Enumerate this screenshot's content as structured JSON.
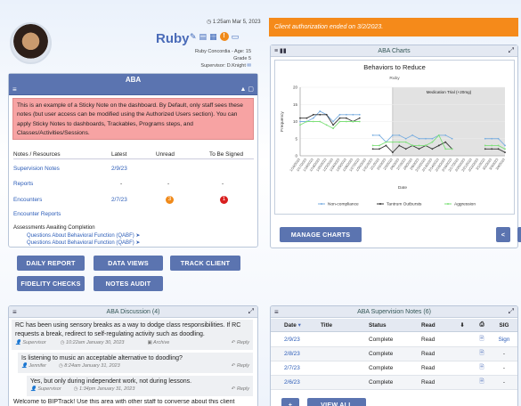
{
  "header": {
    "timestamp": "1:25am Mar 5, 2023",
    "name": "Ruby",
    "subtitle": "Ruby Concordia - Age: 15",
    "grade": "Grade 5",
    "supervisor": "Supervisor: D.Knight"
  },
  "aba": {
    "title": "ABA",
    "sticky": "This is an example of a Sticky Note on the dashboard. By Default, only staff sees these notes (but user access can be modified using the Authorized Users section). You can apply Sticky Notes to dashboards, Trackables, Programs steps, and Classes/Activities/Sessions.",
    "table_headers": [
      "Notes / Resources",
      "Latest",
      "Unread",
      "To Be Signed"
    ],
    "rows": [
      {
        "label": "Supervision Notes",
        "latest": "2/9/23",
        "unread": "",
        "sign": ""
      },
      {
        "label": "Reports",
        "latest": "-",
        "unread": "-",
        "sign": "-"
      },
      {
        "label": "Encounters",
        "latest": "2/7/23",
        "unread": "3",
        "sign": "1"
      },
      {
        "label": "Encounter Reports",
        "latest": "",
        "unread": "",
        "sign": ""
      }
    ],
    "assess_title": "Assessments Awaiting Completion",
    "assess": [
      "Questions About Behavioral Function (QABF)",
      "Questions About Behavioral Function (QABF)"
    ]
  },
  "buttons": {
    "daily": "DAILY REPORT",
    "views": "DATA VIEWS",
    "track": "TRACK CLIENT",
    "fidelity": "FIDELITY CHECKS",
    "notes": "NOTES AUDIT",
    "manage": "MANAGE CHARTS",
    "prev": "<",
    "next": ">",
    "add": "+",
    "viewall": "VIEW ALL"
  },
  "auth_banner": "Client authorization ended on 3/2/2023.",
  "charts": {
    "panel_title": "ABA Charts"
  },
  "chart_data": {
    "type": "line",
    "title": "Behaviors to Reduce",
    "subtitle": "Ruby",
    "xlabel": "Date",
    "ylabel": "Frequency",
    "ylim": [
      0,
      20
    ],
    "yticks": [
      0,
      5,
      10,
      15,
      20
    ],
    "phase_label": "Medication Trial (+20mg)",
    "phase_start": "2/3/2023",
    "x": [
      "1/16/2023",
      "1/17/2023",
      "1/18/2023",
      "1/19/2023",
      "1/20/2023",
      "1/23/2023",
      "1/24/2023",
      "1/25/2023",
      "1/26/2023",
      "1/27/2023",
      "1/30/2023",
      "1/31/2023",
      "2/1/2023",
      "2/2/2023",
      "2/3/2023",
      "2/6/2023",
      "2/7/2023",
      "2/8/2023",
      "2/9/2023",
      "2/10/2023",
      "2/13/2023",
      "2/14/2023",
      "2/15/2023",
      "2/16/2023",
      "2/17/2023",
      "2/20/2023",
      "2/21/2023",
      "2/22/2023",
      "3/1/2023",
      "3/2/2023",
      "3/3/2023",
      "3/4/2023"
    ],
    "series": [
      {
        "name": "Non-compliance",
        "color": "#7aaee0",
        "values": [
          10,
          10,
          11,
          13,
          12,
          10,
          12,
          12,
          12,
          12,
          null,
          6,
          6,
          4,
          6,
          6,
          5,
          6,
          5,
          5,
          5,
          6,
          6,
          5,
          null,
          null,
          null,
          null,
          5,
          5,
          5,
          3
        ]
      },
      {
        "name": "Tantrum Outbursts",
        "color": "#333333",
        "values": [
          11,
          11,
          12,
          12,
          12,
          9,
          11,
          11,
          10,
          11,
          null,
          2,
          2,
          3,
          1,
          3,
          2,
          3,
          2,
          3,
          2,
          3,
          4,
          2,
          null,
          null,
          null,
          null,
          2,
          2,
          2,
          1
        ]
      },
      {
        "name": "Aggression",
        "color": "#7ee07a",
        "values": [
          9,
          10,
          10,
          10,
          9,
          8,
          10,
          10,
          10,
          10,
          null,
          3,
          3,
          4,
          4,
          4,
          4,
          3,
          3,
          3,
          4,
          6,
          2,
          2,
          null,
          null,
          null,
          null,
          3,
          3,
          3,
          2
        ]
      }
    ]
  },
  "discussion": {
    "title": "ABA Discussion (4)",
    "posts": [
      {
        "text": "RC has been using sensory breaks as a way to dodge class responsibilities. If RC requests a break, redirect to self-regulating activity such as doodling.",
        "author": "Supervisor",
        "time": "10:22am January 30, 2023",
        "archive": "Archive",
        "reply": "Reply"
      },
      {
        "text": "Is listening to music an acceptable alternative to doodling?",
        "author": "Jennifer",
        "time": "8:24am January 31, 2023",
        "reply": "Reply"
      },
      {
        "text": "Yes, but only during independent work, not during lessons.",
        "author": "Supervisor",
        "time": "1:34pm January 31, 2023",
        "reply": "Reply"
      },
      {
        "text": "Welcome to BIPTrack! Use this area with other staff to converse about this client"
      }
    ]
  },
  "supervision": {
    "title": "ABA Supervision Notes (6)",
    "headers": [
      "Date",
      "Title",
      "Status",
      "Read",
      "",
      "",
      "SIG"
    ],
    "rows": [
      {
        "date": "2/9/23",
        "status": "Complete",
        "read": "Read",
        "sig": "Sign"
      },
      {
        "date": "2/8/23",
        "status": "Complete",
        "read": "Read",
        "sig": "-"
      },
      {
        "date": "2/7/23",
        "status": "Complete",
        "read": "Read",
        "sig": "-"
      },
      {
        "date": "2/6/23",
        "status": "Complete",
        "read": "Read",
        "sig": "-"
      }
    ]
  }
}
